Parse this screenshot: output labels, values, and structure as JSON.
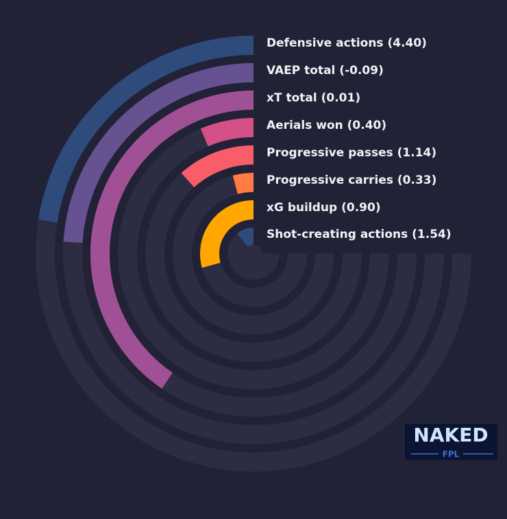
{
  "chart_data": {
    "type": "radial_bar",
    "categories": [
      "Defensive actions (4.40)",
      "VAEP total (-0.09)",
      "xT total (0.01)",
      "Aerials won (0.40)",
      "Progressive passes (1.14)",
      "Progressive carries (0.33)",
      "xG buildup (0.90)",
      "Shot-creating actions (1.54)"
    ],
    "values": [
      30,
      32,
      54,
      8.5,
      15.5,
      5.5,
      39,
      14.5
    ],
    "colors": [
      "#2f4b7c",
      "#665191",
      "#a05195",
      "#d45087",
      "#f95d6a",
      "#ff7c43",
      "#ffa600",
      "#2f4b7c"
    ],
    "ylim": [
      0,
      100
    ],
    "track_color": "#2c2c42"
  },
  "logo": {
    "title": "NAKED",
    "subtitle": "FPL"
  }
}
